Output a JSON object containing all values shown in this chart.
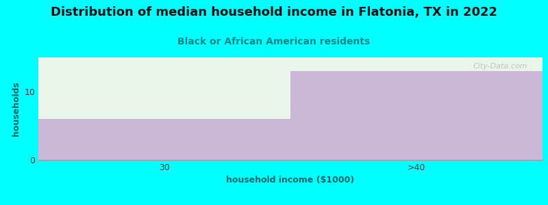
{
  "title": "Distribution of median household income in Flatonia, TX in 2022",
  "subtitle": "Black or African American residents",
  "categories": [
    "30",
    ">40"
  ],
  "values": [
    6,
    13
  ],
  "bar_color": "#c4a8d4",
  "background_color": "#00ffff",
  "plot_bg_color": "#e8f5e8",
  "xlabel": "household income ($1000)",
  "ylabel": "households",
  "ylim": [
    0,
    15
  ],
  "yticks": [
    0,
    10
  ],
  "title_fontsize": 13,
  "subtitle_fontsize": 10,
  "axis_label_fontsize": 9,
  "tick_fontsize": 9,
  "title_color": "#111111",
  "subtitle_color": "#008888",
  "label_color": "#006666",
  "tick_color": "#444444",
  "watermark": "City-Data.com"
}
